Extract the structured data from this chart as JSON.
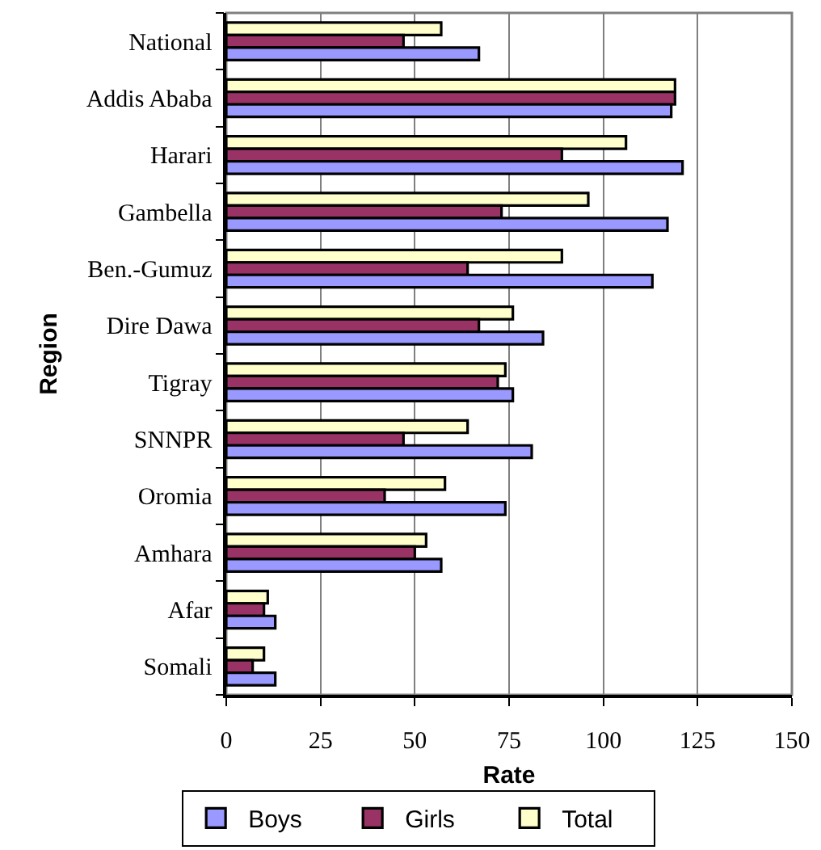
{
  "chart_data": {
    "type": "bar",
    "orientation": "horizontal",
    "xlabel": "Rate",
    "ylabel": "Region",
    "categories": [
      "National",
      "Addis Ababa",
      "Harari",
      "Gambella",
      "Ben.-Gumuz",
      "Dire Dawa",
      "Tigray",
      "SNNPR",
      "Oromia",
      "Amhara",
      "Afar",
      "Somali"
    ],
    "series": [
      {
        "name": "Boys",
        "color": "#9999ff",
        "values": [
          67,
          118,
          121,
          117,
          113,
          84,
          76,
          81,
          74,
          57,
          13,
          13
        ]
      },
      {
        "name": "Girls",
        "color": "#993366",
        "values": [
          47,
          119,
          89,
          73,
          64,
          67,
          72,
          47,
          42,
          50,
          10,
          7
        ]
      },
      {
        "name": "Total",
        "color": "#ffffcc",
        "values": [
          57,
          119,
          106,
          96,
          89,
          76,
          74,
          64,
          58,
          53,
          11,
          10
        ]
      }
    ],
    "xlim": [
      0,
      150
    ],
    "xticks": [
      0,
      25,
      50,
      75,
      100,
      125,
      150
    ],
    "grid": "x",
    "legend": "bottom"
  }
}
